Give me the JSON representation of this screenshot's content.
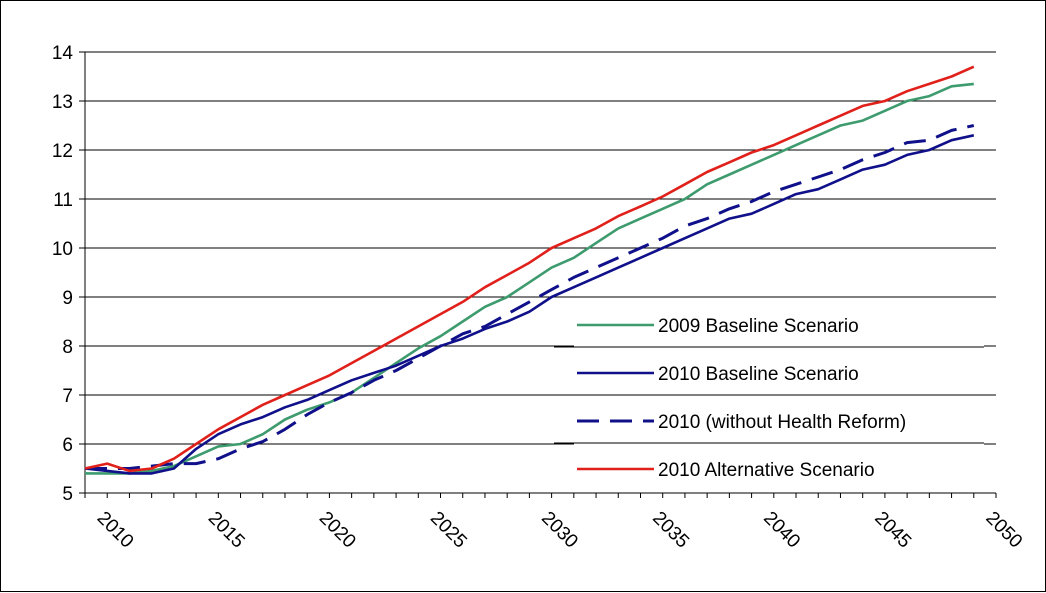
{
  "chart_data": {
    "type": "line",
    "title": "",
    "xlabel": "",
    "ylabel": "",
    "xlim": [
      2009,
      2050
    ],
    "ylim": [
      5,
      14
    ],
    "y_ticks": [
      5,
      6,
      7,
      8,
      9,
      10,
      11,
      12,
      13,
      14
    ],
    "x_ticks": [
      2010,
      2015,
      2020,
      2025,
      2030,
      2035,
      2040,
      2045,
      2050
    ],
    "grid": "horizontal",
    "legend": "center-right",
    "x": [
      2009,
      2010,
      2011,
      2012,
      2013,
      2014,
      2015,
      2016,
      2017,
      2018,
      2019,
      2020,
      2021,
      2022,
      2023,
      2024,
      2025,
      2026,
      2027,
      2028,
      2029,
      2030,
      2031,
      2032,
      2033,
      2034,
      2035,
      2036,
      2037,
      2038,
      2039,
      2040,
      2041,
      2042,
      2043,
      2044,
      2045,
      2046,
      2047,
      2048,
      2049
    ],
    "series": [
      {
        "name": "2009 Baseline Scenario",
        "color": "#3d9b6e",
        "dash": "solid",
        "values": [
          5.4,
          5.4,
          5.4,
          5.45,
          5.55,
          5.75,
          5.95,
          6.0,
          6.2,
          6.5,
          6.7,
          6.85,
          7.05,
          7.35,
          7.65,
          7.95,
          8.2,
          8.5,
          8.8,
          9.0,
          9.3,
          9.6,
          9.8,
          10.1,
          10.4,
          10.6,
          10.8,
          11.0,
          11.3,
          11.5,
          11.7,
          11.9,
          12.1,
          12.3,
          12.5,
          12.6,
          12.8,
          13.0,
          13.1,
          13.3,
          13.35
        ]
      },
      {
        "name": "2010 Baseline Scenario",
        "color": "#10108a",
        "dash": "solid",
        "values": [
          5.5,
          5.45,
          5.4,
          5.4,
          5.5,
          5.9,
          6.2,
          6.4,
          6.55,
          6.75,
          6.9,
          7.1,
          7.3,
          7.45,
          7.6,
          7.8,
          8.0,
          8.15,
          8.35,
          8.5,
          8.7,
          9.0,
          9.2,
          9.4,
          9.6,
          9.8,
          10.0,
          10.2,
          10.4,
          10.6,
          10.7,
          10.9,
          11.1,
          11.2,
          11.4,
          11.6,
          11.7,
          11.9,
          12.0,
          12.2,
          12.3
        ]
      },
      {
        "name": "2010 (without Health Reform)",
        "color": "#10108a",
        "dash": "dashed",
        "values": [
          5.5,
          5.5,
          5.5,
          5.55,
          5.6,
          5.6,
          5.7,
          5.9,
          6.05,
          6.3,
          6.6,
          6.85,
          7.05,
          7.3,
          7.5,
          7.75,
          8.0,
          8.25,
          8.4,
          8.65,
          8.9,
          9.15,
          9.4,
          9.6,
          9.8,
          10.0,
          10.2,
          10.45,
          10.6,
          10.8,
          10.95,
          11.15,
          11.3,
          11.45,
          11.6,
          11.8,
          11.95,
          12.15,
          12.2,
          12.4,
          12.5
        ]
      },
      {
        "name": "2010 Alternative Scenario",
        "color": "#e0201a",
        "dash": "solid",
        "values": [
          5.5,
          5.6,
          5.45,
          5.5,
          5.7,
          6.0,
          6.3,
          6.55,
          6.8,
          7.0,
          7.2,
          7.4,
          7.65,
          7.9,
          8.15,
          8.4,
          8.65,
          8.9,
          9.2,
          9.45,
          9.7,
          10.0,
          10.2,
          10.4,
          10.65,
          10.85,
          11.05,
          11.3,
          11.55,
          11.75,
          11.95,
          12.1,
          12.3,
          12.5,
          12.7,
          12.9,
          13.0,
          13.2,
          13.35,
          13.5,
          13.7
        ]
      }
    ]
  }
}
